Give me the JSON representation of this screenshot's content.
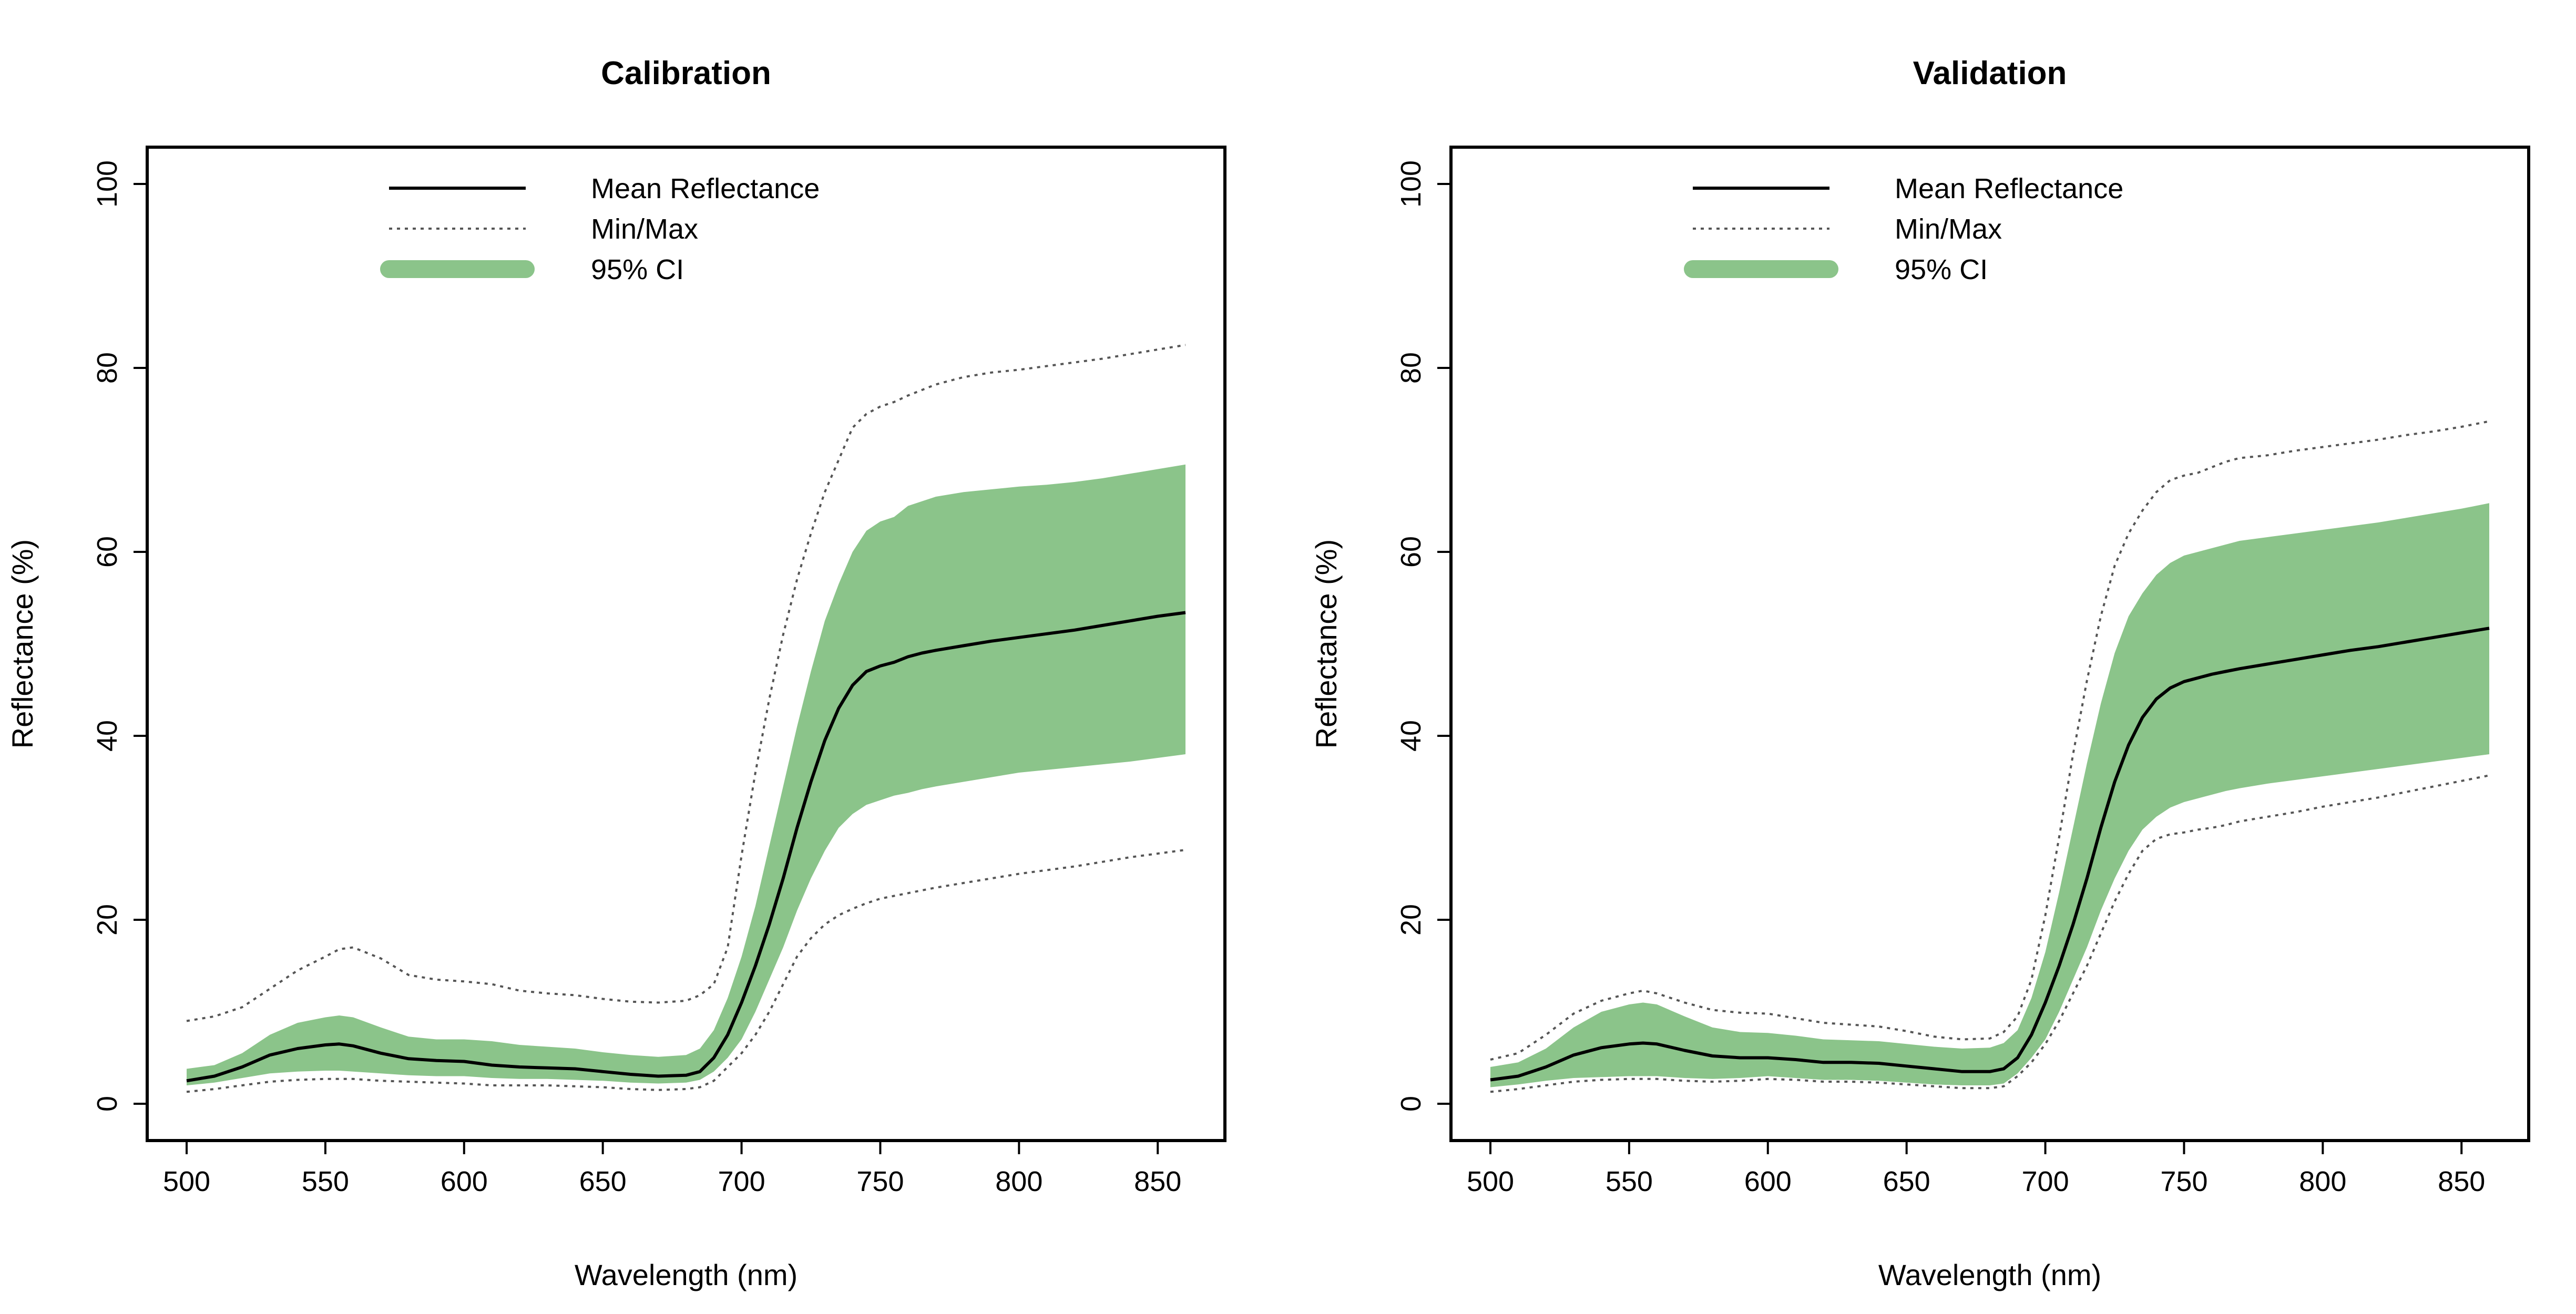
{
  "figure": {
    "legend_labels": [
      "Mean Reflectance",
      "Min/Max",
      "95% CI"
    ]
  },
  "colors": {
    "ci_fill": "#8bc48a",
    "mean_line": "#000000",
    "minmax_line": "#555555"
  },
  "chart_data": [
    {
      "type": "line",
      "title": "Calibration",
      "xlabel": "Wavelength (nm)",
      "ylabel": "Reflectance (%)",
      "xlim": [
        500,
        860
      ],
      "ylim": [
        0,
        100
      ],
      "xticks": [
        500,
        550,
        600,
        650,
        700,
        750,
        800,
        850
      ],
      "yticks": [
        0,
        20,
        40,
        60,
        80,
        100
      ],
      "grid": false,
      "legend_position": "top-left",
      "x": [
        500,
        510,
        520,
        530,
        540,
        550,
        555,
        560,
        570,
        580,
        590,
        600,
        610,
        620,
        630,
        640,
        650,
        660,
        670,
        680,
        685,
        690,
        695,
        700,
        705,
        710,
        715,
        720,
        725,
        730,
        735,
        740,
        745,
        750,
        755,
        760,
        765,
        770,
        780,
        790,
        800,
        810,
        820,
        830,
        840,
        850,
        860
      ],
      "series": [
        {
          "name": "Mean Reflectance",
          "style": "solid",
          "values": [
            2.5,
            3.0,
            4.0,
            5.3,
            6.0,
            6.4,
            6.5,
            6.3,
            5.5,
            4.9,
            4.7,
            4.6,
            4.2,
            4.0,
            3.9,
            3.8,
            3.5,
            3.2,
            3.0,
            3.1,
            3.5,
            5.0,
            7.5,
            11.0,
            15.0,
            19.5,
            24.5,
            30.0,
            35.0,
            39.5,
            43.0,
            45.5,
            47.0,
            47.6,
            48.0,
            48.6,
            49.0,
            49.3,
            49.8,
            50.3,
            50.7,
            51.1,
            51.5,
            52.0,
            52.5,
            53.0,
            53.4
          ]
        },
        {
          "name": "Min",
          "style": "dotted",
          "values": [
            1.3,
            1.6,
            2.0,
            2.4,
            2.6,
            2.7,
            2.7,
            2.7,
            2.5,
            2.4,
            2.3,
            2.2,
            2.0,
            2.0,
            2.0,
            1.9,
            1.8,
            1.6,
            1.5,
            1.6,
            1.8,
            2.5,
            4.0,
            5.5,
            7.5,
            10.0,
            13.0,
            16.0,
            18.0,
            19.5,
            20.5,
            21.2,
            21.8,
            22.3,
            22.6,
            22.9,
            23.2,
            23.5,
            24.0,
            24.5,
            25.0,
            25.4,
            25.8,
            26.3,
            26.8,
            27.2,
            27.6
          ]
        },
        {
          "name": "Max",
          "style": "dotted",
          "values": [
            9.0,
            9.5,
            10.5,
            12.5,
            14.5,
            16.0,
            16.8,
            17.0,
            15.8,
            14.0,
            13.5,
            13.3,
            13.0,
            12.3,
            12.0,
            11.8,
            11.4,
            11.1,
            11.0,
            11.2,
            11.8,
            13.0,
            17.0,
            27.0,
            36.0,
            44.0,
            51.0,
            57.0,
            62.0,
            66.5,
            70.0,
            73.5,
            75.0,
            75.8,
            76.3,
            77.0,
            77.6,
            78.2,
            79.0,
            79.5,
            79.8,
            80.2,
            80.6,
            81.0,
            81.5,
            82.0,
            82.5
          ]
        },
        {
          "name": "95% CI lower",
          "style": "band-lower",
          "values": [
            2.0,
            2.3,
            2.8,
            3.3,
            3.5,
            3.6,
            3.6,
            3.5,
            3.3,
            3.1,
            3.0,
            3.0,
            2.8,
            2.7,
            2.7,
            2.6,
            2.5,
            2.3,
            2.2,
            2.3,
            2.6,
            3.5,
            5.0,
            7.0,
            10.0,
            13.5,
            17.0,
            21.0,
            24.5,
            27.5,
            30.0,
            31.5,
            32.5,
            33.0,
            33.5,
            33.8,
            34.2,
            34.5,
            35.0,
            35.5,
            36.0,
            36.3,
            36.6,
            36.9,
            37.2,
            37.6,
            38.0
          ]
        },
        {
          "name": "95% CI upper",
          "style": "band-upper",
          "values": [
            3.8,
            4.2,
            5.5,
            7.5,
            8.8,
            9.4,
            9.6,
            9.4,
            8.3,
            7.3,
            7.0,
            7.0,
            6.8,
            6.4,
            6.2,
            6.0,
            5.6,
            5.3,
            5.1,
            5.3,
            6.0,
            8.0,
            11.5,
            16.0,
            21.5,
            28.0,
            34.5,
            41.0,
            47.0,
            52.5,
            56.5,
            60.0,
            62.3,
            63.3,
            63.8,
            65.0,
            65.5,
            66.0,
            66.5,
            66.8,
            67.1,
            67.3,
            67.6,
            68.0,
            68.5,
            69.0,
            69.5
          ]
        }
      ]
    },
    {
      "type": "line",
      "title": "Validation",
      "xlabel": "Wavelength (nm)",
      "ylabel": "Reflectance (%)",
      "xlim": [
        500,
        860
      ],
      "ylim": [
        0,
        100
      ],
      "xticks": [
        500,
        550,
        600,
        650,
        700,
        750,
        800,
        850
      ],
      "yticks": [
        0,
        20,
        40,
        60,
        80,
        100
      ],
      "grid": false,
      "legend_position": "top-left",
      "x": [
        500,
        510,
        520,
        530,
        540,
        550,
        555,
        560,
        570,
        580,
        590,
        600,
        610,
        620,
        630,
        640,
        650,
        660,
        670,
        680,
        685,
        690,
        695,
        700,
        705,
        710,
        715,
        720,
        725,
        730,
        735,
        740,
        745,
        750,
        755,
        760,
        765,
        770,
        780,
        790,
        800,
        810,
        820,
        830,
        840,
        850,
        860
      ],
      "series": [
        {
          "name": "Mean Reflectance",
          "style": "solid",
          "values": [
            2.6,
            3.0,
            4.0,
            5.3,
            6.1,
            6.5,
            6.6,
            6.5,
            5.8,
            5.2,
            5.0,
            5.0,
            4.8,
            4.5,
            4.5,
            4.4,
            4.1,
            3.8,
            3.5,
            3.5,
            3.8,
            5.0,
            7.5,
            11.0,
            15.0,
            19.5,
            24.5,
            30.0,
            35.0,
            39.0,
            42.0,
            44.0,
            45.2,
            45.9,
            46.3,
            46.7,
            47.0,
            47.3,
            47.8,
            48.3,
            48.8,
            49.3,
            49.7,
            50.2,
            50.7,
            51.2,
            51.7
          ]
        },
        {
          "name": "Min",
          "style": "dotted",
          "values": [
            1.3,
            1.6,
            2.0,
            2.4,
            2.6,
            2.7,
            2.7,
            2.7,
            2.5,
            2.4,
            2.5,
            2.7,
            2.6,
            2.4,
            2.4,
            2.3,
            2.1,
            1.9,
            1.7,
            1.7,
            1.9,
            3.0,
            4.5,
            6.5,
            9.0,
            12.0,
            15.0,
            18.5,
            22.0,
            25.0,
            27.5,
            28.8,
            29.3,
            29.5,
            29.8,
            30.0,
            30.3,
            30.7,
            31.2,
            31.7,
            32.3,
            32.8,
            33.3,
            33.9,
            34.5,
            35.1,
            35.7
          ]
        },
        {
          "name": "Max",
          "style": "dotted",
          "values": [
            4.8,
            5.5,
            7.5,
            9.8,
            11.2,
            12.0,
            12.3,
            12.0,
            11.0,
            10.2,
            9.9,
            9.8,
            9.3,
            8.8,
            8.6,
            8.4,
            7.9,
            7.3,
            7.0,
            7.1,
            7.8,
            9.5,
            13.5,
            20.5,
            29.0,
            38.0,
            46.0,
            53.0,
            58.5,
            62.0,
            64.5,
            66.5,
            67.8,
            68.3,
            68.6,
            69.2,
            69.8,
            70.2,
            70.5,
            71.0,
            71.4,
            71.8,
            72.2,
            72.7,
            73.1,
            73.6,
            74.2
          ]
        },
        {
          "name": "95% CI lower",
          "style": "band-lower",
          "values": [
            1.8,
            2.1,
            2.5,
            2.8,
            2.9,
            3.0,
            3.0,
            3.0,
            2.8,
            2.7,
            2.8,
            3.0,
            2.8,
            2.6,
            2.6,
            2.5,
            2.3,
            2.1,
            2.0,
            2.0,
            2.2,
            3.3,
            5.0,
            7.0,
            10.0,
            13.5,
            17.0,
            21.0,
            24.5,
            27.5,
            29.8,
            31.2,
            32.2,
            32.8,
            33.2,
            33.6,
            34.0,
            34.3,
            34.8,
            35.2,
            35.6,
            36.0,
            36.4,
            36.8,
            37.2,
            37.6,
            38.0
          ]
        },
        {
          "name": "95% CI upper",
          "style": "band-upper",
          "values": [
            4.0,
            4.5,
            6.0,
            8.3,
            10.0,
            10.8,
            11.0,
            10.8,
            9.5,
            8.3,
            7.8,
            7.7,
            7.4,
            7.0,
            6.9,
            6.8,
            6.5,
            6.2,
            6.0,
            6.1,
            6.6,
            8.0,
            11.5,
            16.5,
            23.0,
            30.0,
            37.0,
            43.5,
            49.0,
            53.0,
            55.5,
            57.5,
            58.8,
            59.6,
            60.0,
            60.4,
            60.8,
            61.2,
            61.6,
            62.0,
            62.4,
            62.8,
            63.2,
            63.7,
            64.2,
            64.7,
            65.3
          ]
        }
      ]
    }
  ]
}
